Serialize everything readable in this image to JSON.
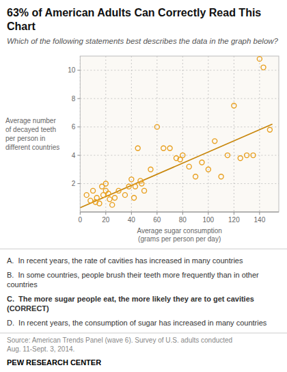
{
  "chart_data": {
    "type": "scatter",
    "title": "63% of American Adults Can Correctly Read This Chart",
    "subtitle": "Which of the following statements best describes the data in the graph below?",
    "x_label": "Average sugar consumption\n(grams per person per day)",
    "y_label": "Average number\nof decayed teeth\nper person in\ndifferent countries",
    "series": [
      {
        "type": "scatter",
        "color": "#E8A020",
        "x": [
          5,
          8,
          10,
          12,
          13,
          15,
          17,
          18,
          20,
          20,
          22,
          23,
          25,
          27,
          30,
          35,
          38,
          40,
          42,
          43,
          45,
          47,
          48,
          50,
          55,
          60,
          65,
          70,
          75,
          78,
          80,
          85,
          90,
          95,
          100,
          105,
          110,
          115,
          120,
          125,
          130,
          135,
          140,
          143,
          148
        ],
        "values": [
          1.2,
          0.8,
          1.5,
          0.7,
          1.0,
          0.6,
          1.8,
          1.2,
          2.0,
          1.5,
          1.3,
          0.9,
          0.5,
          1.0,
          1.5,
          1.2,
          1.8,
          2.3,
          1.0,
          1.8,
          4.5,
          2.2,
          2.0,
          1.5,
          3.0,
          6.0,
          4.5,
          4.5,
          3.8,
          3.7,
          4.0,
          3.2,
          2.5,
          3.5,
          3.0,
          5.0,
          2.5,
          4.0,
          7.5,
          3.8,
          4.0,
          4.0,
          10.8,
          10.2,
          5.8
        ]
      },
      {
        "type": "line",
        "color": "#C8860A",
        "x": [
          0,
          150
        ],
        "values": [
          0.3,
          6.2
        ]
      }
    ],
    "xlim": [
      0,
      155
    ],
    "ylim": [
      0,
      11
    ],
    "xticks": [
      0,
      20,
      40,
      60,
      80,
      100,
      120,
      140
    ],
    "yticks": [
      2,
      4,
      6,
      8,
      10
    ],
    "grid": true,
    "annotations": [
      "A.  In recent years, the rate of cavities has increased in many countries",
      "B.  In some countries, people brush their teeth more frequently than in other countries",
      "C.  The more sugar people eat, the more likely they are to get cavities (CORRECT)",
      "D.  In recent years, the consumption of sugar has increased in many countries"
    ],
    "source": "Source: American Trends Panel (wave 6). Survey of U.S. adults conducted\nAug. 11-Sept. 3, 2014.",
    "brand": "PEW RESEARCH CENTER"
  }
}
